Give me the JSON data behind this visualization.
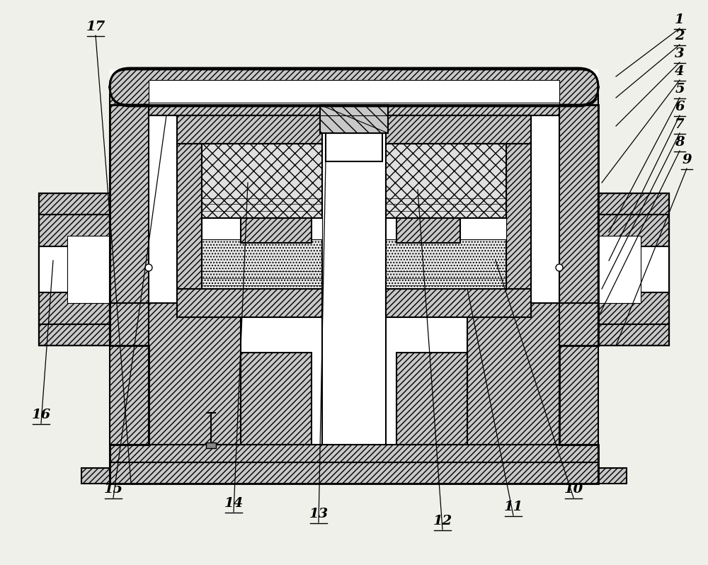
{
  "bg_color": "#f0f0eb",
  "lc": "#000000",
  "figsize": [
    10.0,
    7.98
  ],
  "dpi": 100,
  "callouts": [
    [
      "1",
      870,
      690,
      960,
      758
    ],
    [
      "2",
      870,
      660,
      960,
      735
    ],
    [
      "3",
      870,
      620,
      960,
      710
    ],
    [
      "4",
      850,
      540,
      960,
      685
    ],
    [
      "5",
      860,
      470,
      960,
      660
    ],
    [
      "6",
      860,
      430,
      960,
      635
    ],
    [
      "7",
      850,
      390,
      960,
      610
    ],
    [
      "8",
      845,
      350,
      960,
      585
    ],
    [
      "9",
      870,
      310,
      970,
      560
    ],
    [
      "10",
      700,
      430,
      810,
      95
    ],
    [
      "11",
      660,
      390,
      725,
      70
    ],
    [
      "12",
      590,
      530,
      625,
      50
    ],
    [
      "13",
      460,
      570,
      450,
      60
    ],
    [
      "14",
      350,
      540,
      330,
      75
    ],
    [
      "15",
      235,
      635,
      160,
      95
    ],
    [
      "16",
      75,
      430,
      58,
      200
    ],
    [
      "17",
      185,
      115,
      135,
      748
    ]
  ]
}
